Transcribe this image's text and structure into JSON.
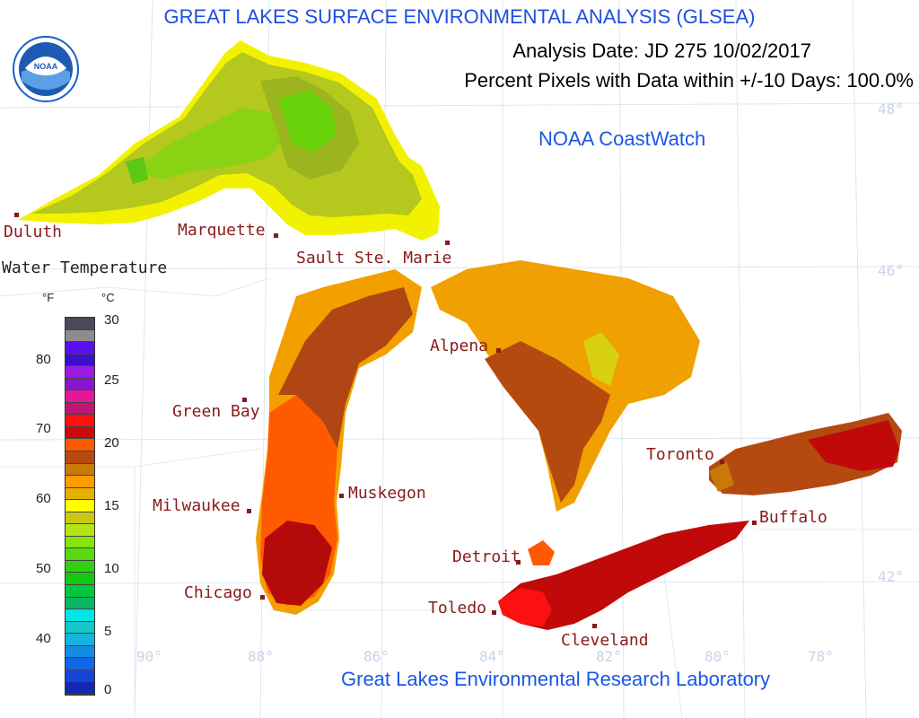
{
  "header": {
    "title": "GREAT LAKES SURFACE ENVIRONMENTAL ANALYSIS (GLSEA)",
    "analysis_date": "Analysis Date:  JD 275 10/02/2017",
    "percent_pixels": "Percent Pixels with Data within +/-10 Days: 100.0%",
    "coastwatch": "NOAA CoastWatch",
    "footer": "Great Lakes Environmental Research Laboratory",
    "logo_text": "NOAA"
  },
  "legend": {
    "title": "Water Temperature",
    "f_unit": "°F",
    "c_unit": "°C",
    "f_ticks": [
      "80",
      "70",
      "60",
      "50",
      "40"
    ],
    "c_ticks": [
      "30",
      "25",
      "20",
      "15",
      "10",
      "5",
      "0"
    ],
    "colors_top_to_bottom": [
      "#4a4a5a",
      "#8c8c8c",
      "#5a0ff0",
      "#3a10c8",
      "#9a1ae6",
      "#8a14d0",
      "#e6169a",
      "#c01478",
      "#ff1010",
      "#c80a0a",
      "#ff5a00",
      "#b84a10",
      "#c87a08",
      "#ff9a00",
      "#e6b000",
      "#ffff00",
      "#c8c814",
      "#b4e614",
      "#86e60a",
      "#5ad814",
      "#30d010",
      "#14c814",
      "#00c83c",
      "#0ab464",
      "#00e6e6",
      "#14c8c8",
      "#14b4dc",
      "#148ce6",
      "#1464e6",
      "#1446d2",
      "#1428b4"
    ]
  },
  "cities": [
    {
      "name": "Duluth"
    },
    {
      "name": "Marquette"
    },
    {
      "name": "Sault Ste. Marie"
    },
    {
      "name": "Green Bay"
    },
    {
      "name": "Alpena"
    },
    {
      "name": "Milwaukee"
    },
    {
      "name": "Muskegon"
    },
    {
      "name": "Toronto"
    },
    {
      "name": "Buffalo"
    },
    {
      "name": "Detroit"
    },
    {
      "name": "Chicago"
    },
    {
      "name": "Toledo"
    },
    {
      "name": "Cleveland"
    }
  ],
  "coords": {
    "lat_48": "48°",
    "lat_46": "46°",
    "lat_42": "42°",
    "lon_90": "90°",
    "lon_88": "88°",
    "lon_86": "86°",
    "lon_84": "84°",
    "lon_82": "82°",
    "lon_80": "80°",
    "lon_78": "78°"
  },
  "colors": {
    "superior_main": "#b4c81e",
    "superior_green": "#7ad214",
    "superior_shore": "#f0f000",
    "michigan_main": "#b04614",
    "michigan_south": "#ff5a00",
    "michigan_deep": "#b40a0a",
    "huron_main": "#f0a000",
    "erie_main": "#c00a0a",
    "ontario_main": "#b44a10"
  }
}
